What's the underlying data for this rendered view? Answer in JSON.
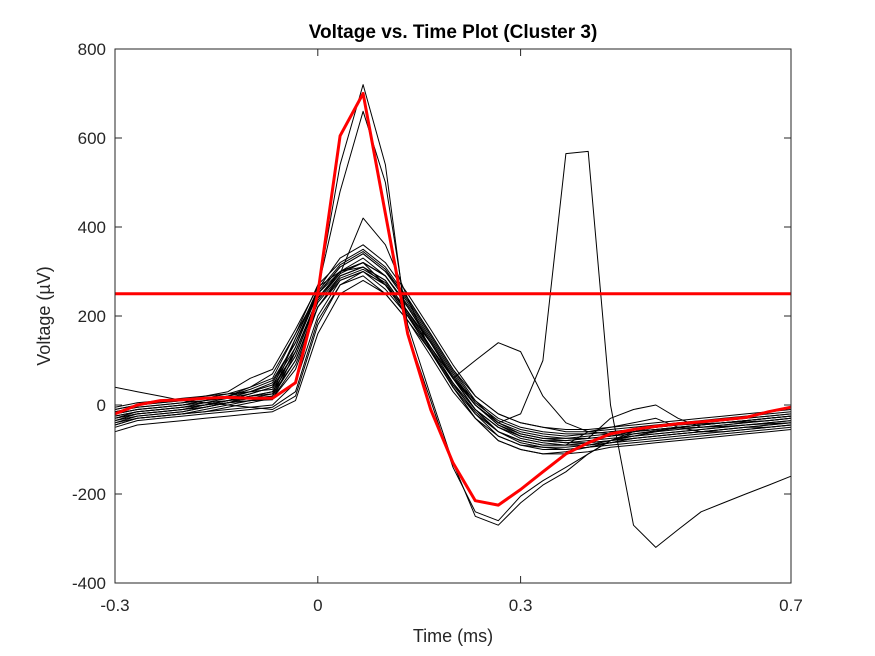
{
  "chart_data": {
    "type": "line",
    "title": "Voltage vs. Time Plot (Cluster 3)",
    "xlabel": "Time (ms)",
    "ylabel": "Voltage (µV)",
    "xlim": [
      -0.3,
      0.7
    ],
    "ylim": [
      -400,
      800
    ],
    "x_ticks": [
      -0.3,
      0,
      0.3,
      0.7
    ],
    "x_tick_labels": [
      "-0.3",
      "0",
      "0.3",
      "0.7"
    ],
    "y_ticks": [
      -400,
      -200,
      0,
      200,
      400,
      600,
      800
    ],
    "y_tick_labels": [
      "-400",
      "-200",
      "0",
      "200",
      "400",
      "600",
      "800"
    ],
    "grid": false,
    "legend": "none",
    "x": [
      -0.3,
      -0.267,
      -0.233,
      -0.2,
      -0.167,
      -0.133,
      -0.1,
      -0.067,
      -0.033,
      0,
      0.033,
      0.067,
      0.1,
      0.133,
      0.167,
      0.2,
      0.233,
      0.267,
      0.3,
      0.333,
      0.367,
      0.4,
      0.433,
      0.467,
      0.5,
      0.533,
      0.567,
      0.6,
      0.633,
      0.667,
      0.7
    ],
    "series": [
      {
        "color": "#ff0000",
        "values": [
          -20,
          0,
          10,
          12,
          15,
          17,
          15,
          15,
          50,
          250,
          605,
          700,
          430,
          160,
          -10,
          -130,
          -215,
          -225,
          -190,
          -150,
          -110,
          -85,
          -65,
          -55,
          -48,
          -42,
          -38,
          -33,
          -28,
          -15,
          -5
        ]
      },
      {
        "color": "#000000",
        "values": [
          -40,
          -25,
          -20,
          -15,
          -5,
          5,
          20,
          25,
          150,
          255,
          540,
          720,
          540,
          160,
          10,
          -140,
          -240,
          -260,
          -205,
          -170,
          -140,
          -110,
          -80,
          -65,
          -58,
          -52,
          -50,
          -48,
          -45,
          -42,
          -40
        ]
      },
      {
        "color": "#000000",
        "values": [
          -30,
          -15,
          -10,
          -5,
          0,
          10,
          15,
          20,
          130,
          260,
          480,
          660,
          500,
          180,
          20,
          -130,
          -250,
          -270,
          -220,
          -180,
          -150,
          -110,
          -80,
          -60,
          -50,
          -45,
          -42,
          -40,
          -38,
          -35,
          -30
        ]
      },
      {
        "color": "#000000",
        "values": [
          -35,
          -20,
          -15,
          -10,
          -5,
          5,
          10,
          12,
          120,
          240,
          300,
          320,
          270,
          200,
          130,
          60,
          10,
          -40,
          -20,
          100,
          565,
          570,
          0,
          -270,
          -320,
          -280,
          -240,
          -220,
          -200,
          -180,
          -160
        ]
      },
      {
        "color": "#000000",
        "values": [
          -45,
          -30,
          -25,
          -20,
          -15,
          -10,
          -5,
          0,
          50,
          200,
          280,
          300,
          260,
          200,
          120,
          40,
          -20,
          -60,
          -80,
          -90,
          -90,
          -85,
          -80,
          -75,
          -70,
          -65,
          -60,
          -55,
          -50,
          -50,
          -45
        ]
      },
      {
        "color": "#000000",
        "values": [
          -25,
          -15,
          -10,
          -5,
          0,
          5,
          10,
          15,
          80,
          220,
          290,
          310,
          270,
          210,
          130,
          50,
          -10,
          -50,
          -70,
          -80,
          -85,
          -80,
          -75,
          -70,
          -65,
          -60,
          -55,
          -50,
          -45,
          -40,
          -35
        ]
      },
      {
        "color": "#000000",
        "values": [
          -20,
          -10,
          -5,
          0,
          5,
          10,
          20,
          30,
          110,
          240,
          300,
          330,
          290,
          220,
          140,
          60,
          0,
          -40,
          -60,
          -70,
          -75,
          -75,
          -70,
          -65,
          -60,
          -55,
          -50,
          -45,
          -40,
          -35,
          -30
        ]
      },
      {
        "color": "#000000",
        "values": [
          -10,
          0,
          5,
          10,
          15,
          20,
          30,
          50,
          140,
          250,
          310,
          340,
          300,
          240,
          160,
          80,
          10,
          -30,
          -50,
          -60,
          -65,
          -65,
          -60,
          -55,
          -50,
          -45,
          -40,
          -35,
          -30,
          -25,
          -20
        ]
      },
      {
        "color": "#000000",
        "values": [
          -50,
          -35,
          -30,
          -25,
          -20,
          -15,
          -10,
          -5,
          30,
          190,
          270,
          290,
          250,
          190,
          110,
          30,
          -30,
          -70,
          -90,
          -100,
          -100,
          -95,
          -90,
          -85,
          -80,
          -75,
          -70,
          -65,
          -60,
          -55,
          -50
        ]
      },
      {
        "color": "#000000",
        "values": [
          -15,
          -5,
          0,
          5,
          10,
          15,
          25,
          40,
          150,
          260,
          330,
          360,
          320,
          250,
          170,
          90,
          20,
          -20,
          -40,
          -50,
          -55,
          -55,
          -50,
          -45,
          -40,
          -35,
          -30,
          -25,
          -20,
          -15,
          -10
        ]
      },
      {
        "color": "#000000",
        "values": [
          40,
          30,
          20,
          10,
          5,
          0,
          -5,
          -10,
          20,
          180,
          270,
          300,
          270,
          210,
          140,
          60,
          0,
          -45,
          -70,
          -80,
          -85,
          -85,
          -80,
          -70,
          -60,
          -50,
          -45,
          -40,
          -35,
          -30,
          -25
        ]
      },
      {
        "color": "#000000",
        "values": [
          -40,
          -30,
          -25,
          -20,
          -10,
          0,
          10,
          20,
          100,
          230,
          290,
          310,
          280,
          210,
          130,
          60,
          -10,
          -60,
          -85,
          -95,
          -100,
          -95,
          -85,
          -75,
          -70,
          -65,
          -60,
          -55,
          -50,
          -45,
          -40
        ]
      },
      {
        "color": "#000000",
        "values": [
          -30,
          -20,
          -15,
          -10,
          0,
          10,
          25,
          40,
          120,
          240,
          300,
          320,
          290,
          220,
          140,
          60,
          -10,
          -50,
          -70,
          -80,
          -80,
          -75,
          -70,
          -60,
          -55,
          -50,
          -45,
          -40,
          -35,
          -30,
          -25
        ]
      },
      {
        "color": "#000000",
        "values": [
          -5,
          5,
          10,
          15,
          20,
          25,
          40,
          60,
          160,
          270,
          320,
          350,
          310,
          240,
          160,
          80,
          20,
          -20,
          -40,
          -50,
          -60,
          -60,
          -55,
          -50,
          -45,
          -40,
          -35,
          -30,
          -25,
          -20,
          -15
        ]
      },
      {
        "color": "#000000",
        "values": [
          -60,
          -45,
          -40,
          -35,
          -30,
          -25,
          -20,
          -15,
          10,
          160,
          250,
          280,
          250,
          190,
          120,
          40,
          -30,
          -80,
          -100,
          -110,
          -110,
          -105,
          -95,
          -90,
          -85,
          -80,
          -75,
          -70,
          -65,
          -60,
          -55
        ]
      },
      {
        "color": "#000000",
        "values": [
          -25,
          -15,
          -10,
          -5,
          5,
          15,
          30,
          45,
          130,
          250,
          310,
          340,
          300,
          230,
          150,
          70,
          0,
          -40,
          -65,
          -75,
          -75,
          -70,
          -65,
          -60,
          -55,
          -50,
          -45,
          -40,
          -35,
          -30,
          -25
        ]
      },
      {
        "color": "#000000",
        "values": [
          -35,
          -25,
          -20,
          -15,
          -5,
          5,
          15,
          25,
          100,
          220,
          280,
          300,
          270,
          200,
          120,
          50,
          -20,
          -70,
          -90,
          -95,
          -95,
          -90,
          -80,
          -70,
          -65,
          -60,
          -55,
          -50,
          -45,
          -40,
          -35
        ]
      },
      {
        "color": "#000000",
        "values": [
          -20,
          -10,
          -5,
          0,
          10,
          20,
          35,
          55,
          140,
          255,
          315,
          345,
          305,
          235,
          155,
          75,
          5,
          -35,
          -55,
          -65,
          -70,
          -65,
          -60,
          -55,
          -50,
          -45,
          -40,
          -35,
          -30,
          -25,
          -20
        ]
      },
      {
        "color": "#000000",
        "values": [
          -10,
          0,
          5,
          10,
          20,
          30,
          60,
          80,
          170,
          265,
          300,
          310,
          280,
          210,
          140,
          60,
          -10,
          -50,
          -75,
          -85,
          -90,
          -90,
          -85,
          -80,
          -75,
          -70,
          -65,
          -60,
          -55,
          -50,
          -45
        ]
      },
      {
        "color": "#000000",
        "values": [
          -45,
          -30,
          -25,
          -20,
          -15,
          -5,
          5,
          15,
          90,
          220,
          285,
          305,
          275,
          205,
          125,
          45,
          -15,
          -60,
          -80,
          -90,
          -90,
          -60,
          -50,
          -40,
          -30,
          -50,
          -60,
          -60,
          -55,
          -50,
          -45
        ]
      },
      {
        "color": "#000000",
        "values": [
          -20,
          -10,
          -5,
          0,
          10,
          20,
          40,
          70,
          160,
          250,
          300,
          320,
          290,
          220,
          140,
          60,
          100,
          140,
          120,
          20,
          -40,
          -60,
          -65,
          -60,
          -55,
          -50,
          -45,
          -40,
          -35,
          -30,
          -25
        ]
      },
      {
        "color": "#000000",
        "values": [
          -15,
          -5,
          0,
          5,
          15,
          25,
          30,
          35,
          120,
          240,
          295,
          320,
          290,
          225,
          145,
          65,
          0,
          -45,
          -65,
          -75,
          -80,
          -75,
          -30,
          -10,
          0,
          -30,
          -50,
          -45,
          -40,
          -35,
          -30
        ]
      },
      {
        "color": "#000000",
        "values": [
          -30,
          -20,
          -15,
          -10,
          0,
          10,
          20,
          30,
          110,
          235,
          295,
          420,
          360,
          240,
          120,
          40,
          -30,
          -80,
          -100,
          -110,
          -105,
          -95,
          -85,
          -75,
          -70,
          -65,
          -60,
          -55,
          -50,
          -45,
          -40
        ]
      }
    ],
    "threshold": {
      "value": 250,
      "color": "#ff0000"
    }
  }
}
